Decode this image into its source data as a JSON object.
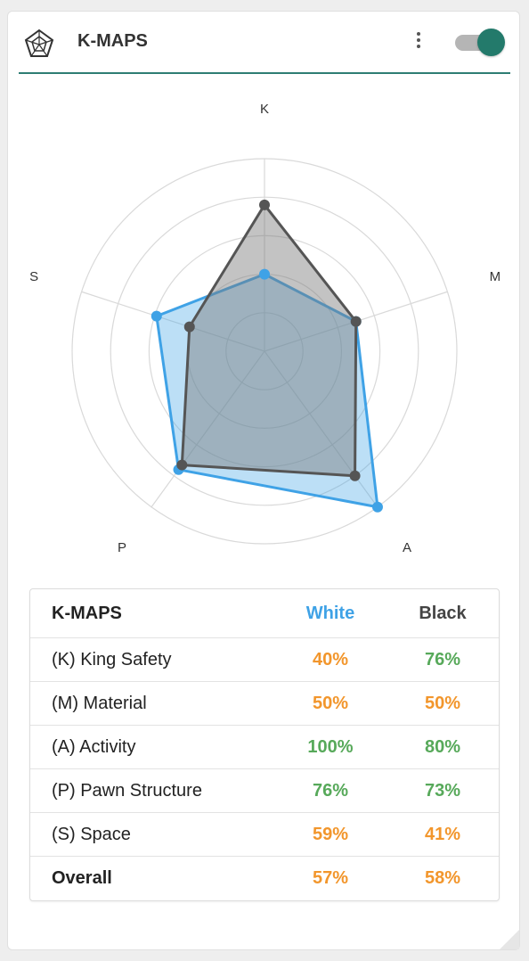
{
  "header": {
    "title": "K-MAPS",
    "logo_icon": "radar-web-icon",
    "menu_icon": "kebab-menu-icon",
    "toggle_state": "on",
    "accent_color": "#237a6b"
  },
  "chart_data": {
    "type": "radar",
    "axes": [
      "K",
      "M",
      "A",
      "P",
      "S"
    ],
    "rings": 5,
    "series": [
      {
        "name": "White",
        "values": [
          40,
          50,
          100,
          76,
          59
        ],
        "color": "#3fa2e6"
      },
      {
        "name": "Black",
        "values": [
          76,
          50,
          80,
          73,
          41
        ],
        "color": "#555555"
      }
    ]
  },
  "table": {
    "header": {
      "name": "K-MAPS",
      "white": "White",
      "black": "Black"
    },
    "rows": [
      {
        "name": "(K) King Safety",
        "white": "40%",
        "black": "76%",
        "white_color": "orange",
        "black_color": "green"
      },
      {
        "name": "(M) Material",
        "white": "50%",
        "black": "50%",
        "white_color": "orange",
        "black_color": "orange"
      },
      {
        "name": "(A) Activity",
        "white": "100%",
        "black": "80%",
        "white_color": "green",
        "black_color": "green"
      },
      {
        "name": "(P) Pawn Structure",
        "white": "76%",
        "black": "73%",
        "white_color": "green",
        "black_color": "green"
      },
      {
        "name": "(S) Space",
        "white": "59%",
        "black": "41%",
        "white_color": "orange",
        "black_color": "orange"
      },
      {
        "name": "Overall",
        "white": "57%",
        "black": "58%",
        "white_color": "orange",
        "black_color": "orange"
      }
    ]
  }
}
